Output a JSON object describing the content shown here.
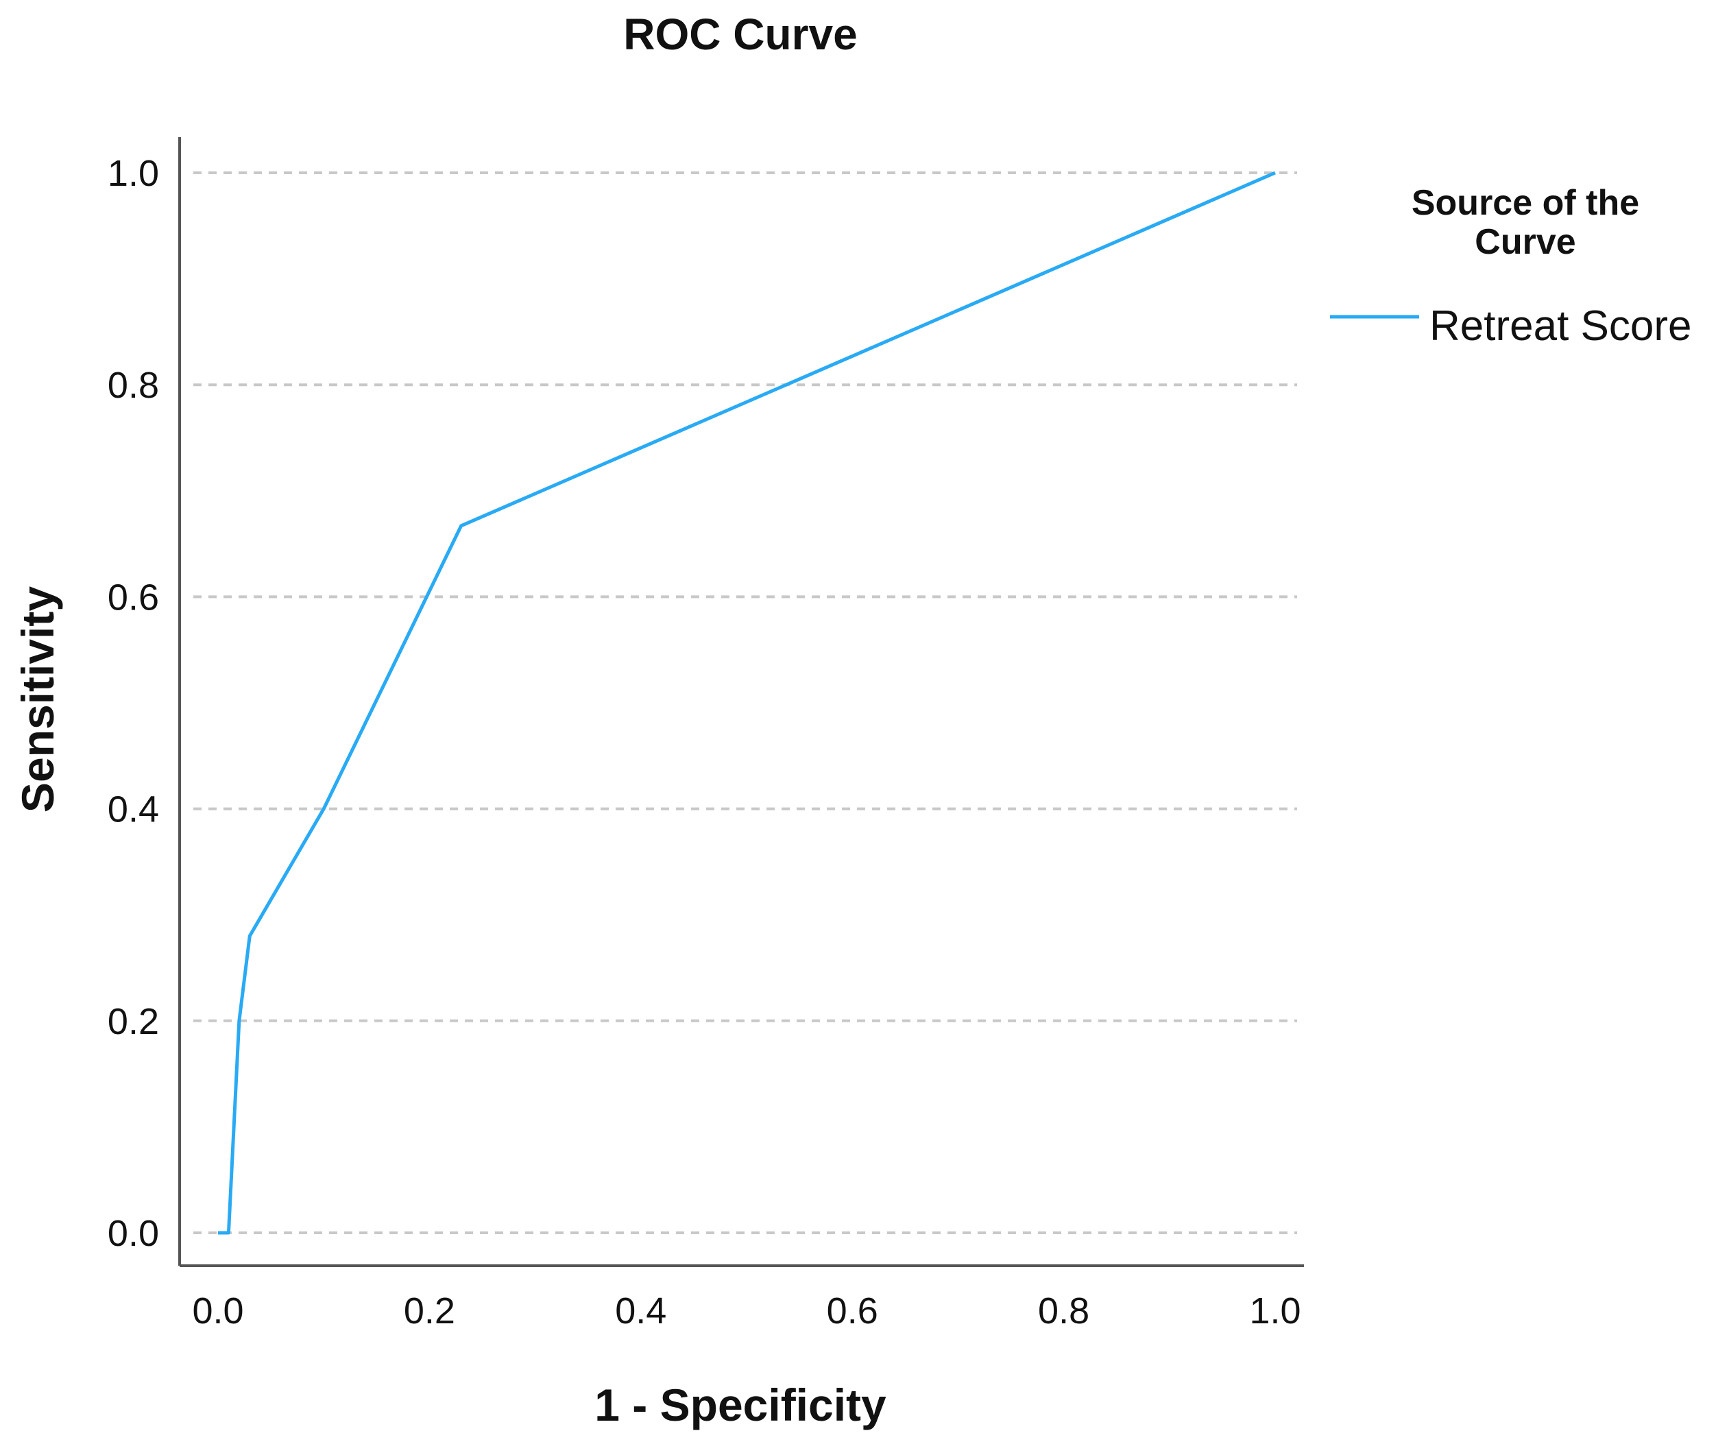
{
  "chart_data": {
    "type": "line",
    "title": "ROC Curve",
    "xlabel": "1 - Specificity",
    "ylabel": "Sensitivity",
    "xlim": [
      0.0,
      1.0
    ],
    "ylim": [
      0.0,
      1.0
    ],
    "x_ticks": [
      "0.0",
      "0.2",
      "0.4",
      "0.6",
      "0.8",
      "1.0"
    ],
    "y_ticks": [
      "0.0",
      "0.2",
      "0.4",
      "0.6",
      "0.8",
      "1.0"
    ],
    "grid": "horizontal-dashed",
    "legend": {
      "title_lines": [
        "Source of the",
        "Curve"
      ],
      "placement": "top-right"
    },
    "series": [
      {
        "name": "Retreat Score",
        "color": "#29aaf4",
        "points": [
          {
            "x": 0.0,
            "y": 0.0
          },
          {
            "x": 0.01,
            "y": 0.0
          },
          {
            "x": 0.02,
            "y": 0.2
          },
          {
            "x": 0.03,
            "y": 0.28
          },
          {
            "x": 0.1,
            "y": 0.4
          },
          {
            "x": 0.23,
            "y": 0.667
          },
          {
            "x": 1.0,
            "y": 1.0
          }
        ]
      }
    ]
  }
}
